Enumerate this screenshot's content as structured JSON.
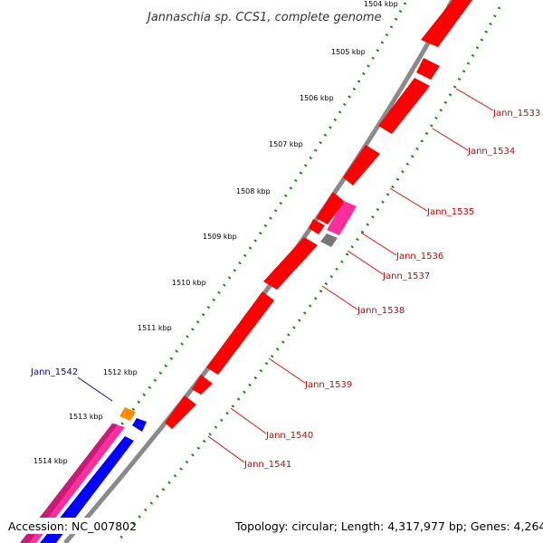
{
  "title": "Jannaschia sp. CCS1, complete genome",
  "footer": {
    "accession": "Accession: NC_007802",
    "topology": "Topology: circular; Length: 4,317,977 bp; Genes: 4,264"
  },
  "colors": {
    "forward_gene": "#ff0000",
    "reverse_gene": "#0000ff",
    "pink_gene": "#ff2e9e",
    "orange_gene": "#ff8c00",
    "gray_gene": "#777777",
    "backbone": "#8a8a8a",
    "ticks": "#1a8a1a",
    "label_red": "#cc0000",
    "label_blue": "#0000cc"
  },
  "scale_ticks": [
    "1504 kbp",
    "1505 kbp",
    "1506 kbp",
    "1507 kbp",
    "1508 kbp",
    "1509 kbp",
    "1510 kbp",
    "1511 kbp",
    "1512 kbp",
    "1513 kbp",
    "1514 kbp"
  ],
  "gene_labels": [
    "Jann_1533",
    "Jann_1534",
    "Jann_1535",
    "Jann_1536",
    "Jann_1537",
    "Jann_1538",
    "Jann_1539",
    "Jann_1540",
    "Jann_1541",
    "Jann_1542"
  ]
}
